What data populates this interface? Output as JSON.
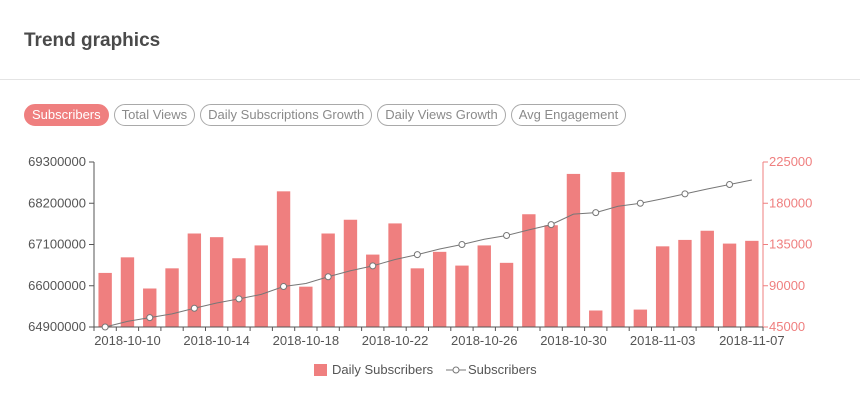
{
  "header": {
    "title": "Trend graphics"
  },
  "tabs": [
    {
      "label": "Subscribers",
      "active": true
    },
    {
      "label": "Total Views",
      "active": false
    },
    {
      "label": "Daily Subscriptions Growth",
      "active": false
    },
    {
      "label": "Daily Views Growth",
      "active": false
    },
    {
      "label": "Avg Engagement",
      "active": false
    }
  ],
  "colors": {
    "bar": "#ef7f7f",
    "line": "#777777",
    "right_axis": "#ef7f7f",
    "active_tab": "#ef7f7f"
  },
  "chart_data": {
    "type": "bar",
    "dates": [
      "2018-10-09",
      "2018-10-10",
      "2018-10-11",
      "2018-10-12",
      "2018-10-13",
      "2018-10-14",
      "2018-10-15",
      "2018-10-16",
      "2018-10-17",
      "2018-10-18",
      "2018-10-19",
      "2018-10-20",
      "2018-10-21",
      "2018-10-22",
      "2018-10-23",
      "2018-10-24",
      "2018-10-25",
      "2018-10-26",
      "2018-10-27",
      "2018-10-28",
      "2018-10-29",
      "2018-10-30",
      "2018-10-31",
      "2018-11-01",
      "2018-11-02",
      "2018-11-03",
      "2018-11-04",
      "2018-11-05",
      "2018-11-06",
      "2018-11-07"
    ],
    "x_tick_labels": [
      "2018-10-10",
      "2018-10-14",
      "2018-10-18",
      "2018-10-22",
      "2018-10-26",
      "2018-10-30",
      "2018-11-03",
      "2018-11-07"
    ],
    "y_left_ticks": [
      "64900000",
      "66000000",
      "67100000",
      "68200000",
      "69300000"
    ],
    "y_left_range": [
      64900000,
      69300000
    ],
    "y_right_ticks": [
      "45000",
      "90000",
      "135000",
      "180000",
      "225000"
    ],
    "y_right_range": [
      45000,
      225000
    ],
    "series": [
      {
        "name": "Daily Subscribers",
        "type": "bar",
        "axis": "right",
        "values": [
          104000,
          121000,
          87000,
          109000,
          147000,
          143000,
          120000,
          134000,
          193000,
          89000,
          147000,
          162000,
          124000,
          158000,
          109000,
          127000,
          112000,
          134000,
          115000,
          168000,
          156000,
          212000,
          63000,
          214000,
          64000,
          133000,
          140000,
          150000,
          136000,
          139000
        ]
      },
      {
        "name": "Subscribers",
        "type": "line",
        "axis": "left",
        "values": [
          64900000,
          65050000,
          65150000,
          65250000,
          65400000,
          65540000,
          65650000,
          65770000,
          65980000,
          66060000,
          66240000,
          66400000,
          66530000,
          66700000,
          66830000,
          66980000,
          67100000,
          67240000,
          67340000,
          67490000,
          67630000,
          67910000,
          67950000,
          68120000,
          68200000,
          68320000,
          68450000,
          68580000,
          68700000,
          68820000
        ]
      }
    ],
    "legend": {
      "position": "bottom",
      "entries": [
        "Daily Subscribers",
        "Subscribers"
      ]
    },
    "grid": false
  }
}
